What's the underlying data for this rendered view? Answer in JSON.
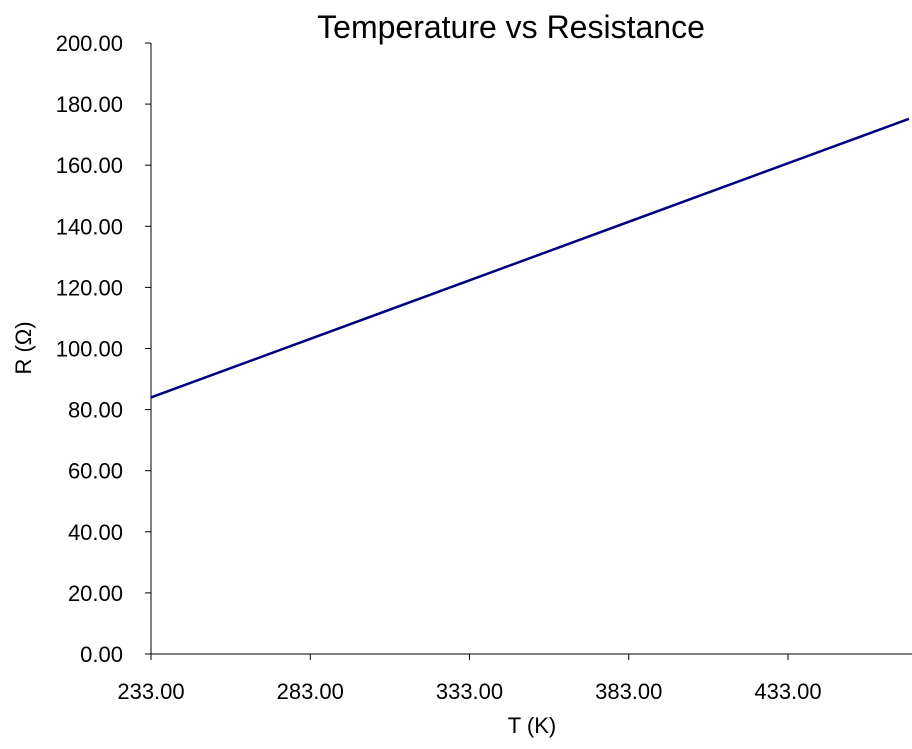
{
  "chart_data": {
    "type": "line",
    "title": "Temperature vs Resistance",
    "xlabel": "T (K)",
    "ylabel": "R (Ω)",
    "xlim": [
      233,
      471
    ],
    "ylim": [
      0,
      200
    ],
    "x_ticks": [
      "233.00",
      "283.00",
      "333.00",
      "383.00",
      "433.00"
    ],
    "y_ticks": [
      "0.00",
      "20.00",
      "40.00",
      "60.00",
      "80.00",
      "100.00",
      "120.00",
      "140.00",
      "160.00",
      "180.00",
      "200.00"
    ],
    "grid": false,
    "series": [
      {
        "color": "#000080",
        "x": [
          233,
          471
        ],
        "y": [
          84.0,
          175.2
        ]
      }
    ]
  }
}
